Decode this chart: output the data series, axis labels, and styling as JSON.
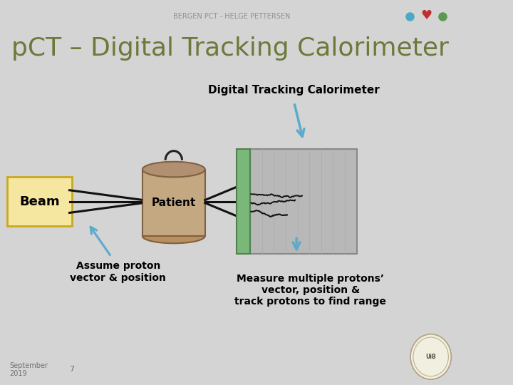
{
  "bg_color": "#d4d4d4",
  "header_text": "BERGEN PCT - HELGE PETTERSEN",
  "title_text": "pCT – Digital Tracking Calorimeter",
  "title_color": "#6b7a3a",
  "title_fontsize": 26,
  "dtc_label": "Digital Tracking Calorimeter",
  "beam_label": "Beam",
  "patient_label": "Patient",
  "assume_text": "Assume proton\nvector & position",
  "measure_text": "Measure multiple protons’\nvector, position &\ntrack protons to find range",
  "footer_date": "September\n2019",
  "footer_page": "7",
  "beam_box_color": "#f5e6a0",
  "beam_box_edge": "#c8a820",
  "patient_body_color": "#c4a882",
  "patient_lid_color": "#b09070",
  "calorimeter_color": "#b8b8b8",
  "calorimeter_edge": "#888888",
  "green_layer_color": "#7ab87a",
  "arrow_color": "#5aaccc",
  "header_color": "#909090",
  "icon_blue": "#4aa8c8",
  "icon_red": "#c03030",
  "icon_green": "#5a9a50"
}
